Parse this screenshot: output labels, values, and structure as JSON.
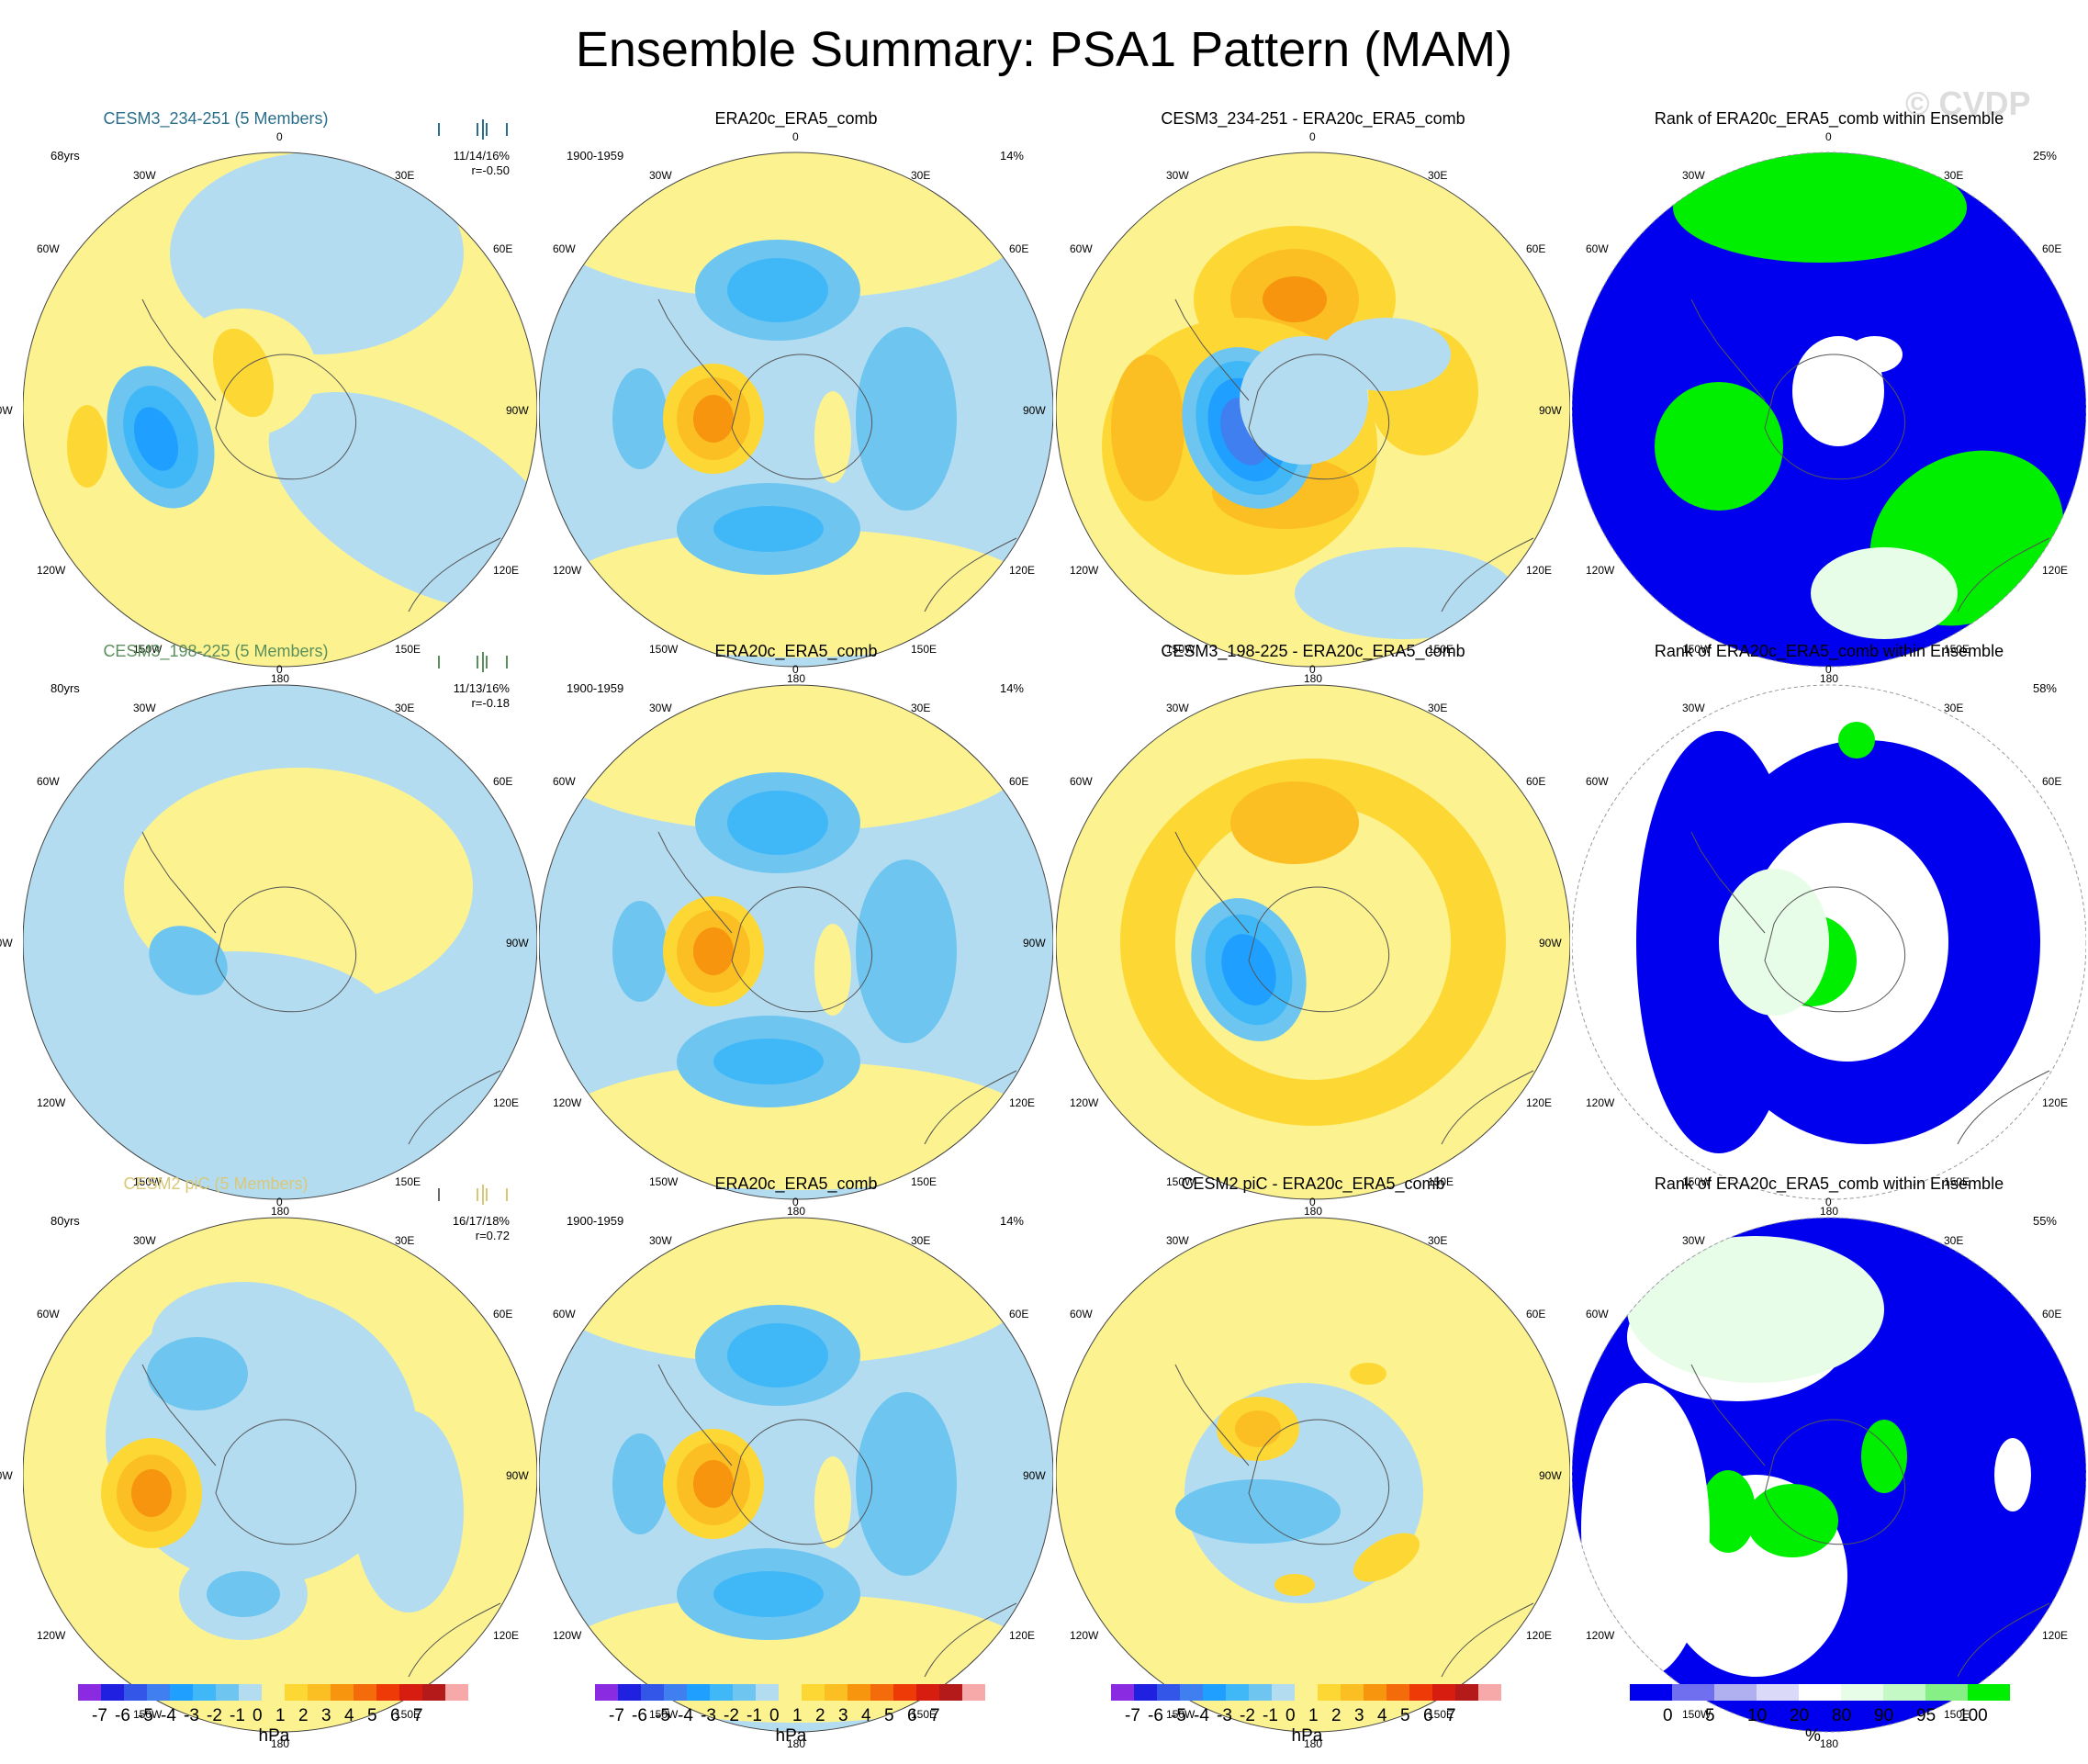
{
  "main_title": "Ensemble Summary: PSA1 Pattern (MAM)",
  "watermark": "© CVDP",
  "lon_labels": {
    "top": "0",
    "tr": "30E",
    "r1": "60E",
    "r": "90E",
    "r2": "120E",
    "br": "150E",
    "bottom": "180",
    "bl": "150W",
    "l2": "120W",
    "l": "90W",
    "l1": "60W",
    "tl": "30W"
  },
  "rows": [
    {
      "model": {
        "title": "CESM3_234-251 (5 Members)",
        "title_color": "#2a6e8c",
        "years": "68yrs",
        "stat1": "11/14/16%",
        "stat2": "r=-0.50",
        "tick_colors": [
          "#2a6e8c",
          "#2a6e8c",
          "#2a6e8c",
          "#2a6e8c",
          "#2a6e8c"
        ]
      },
      "obs": {
        "title": "ERA20c_ERA5_comb",
        "period": "1900-1959",
        "pct": "14%"
      },
      "diff": {
        "title": "CESM3_234-251 - ERA20c_ERA5_comb"
      },
      "rank": {
        "title": "Rank of ERA20c_ERA5_comb within Ensemble",
        "pct": "25%"
      }
    },
    {
      "model": {
        "title": "CESM3_198-225 (5 Members)",
        "title_color": "#5b8f5b",
        "years": "80yrs",
        "stat1": "11/13/16%",
        "stat2": "r=-0.18",
        "tick_colors": [
          "#5b8f5b",
          "#5b8f5b",
          "#5b8f5b",
          "#5b8f5b",
          "#5b8f5b"
        ]
      },
      "obs": {
        "title": "ERA20c_ERA5_comb",
        "period": "1900-1959",
        "pct": "14%"
      },
      "diff": {
        "title": "CESM3_198-225 - ERA20c_ERA5_comb"
      },
      "rank": {
        "title": "Rank of ERA20c_ERA5_comb within Ensemble",
        "pct": "58%"
      }
    },
    {
      "model": {
        "title": "CESM2 piC (5 Members)",
        "title_color": "#d8c878",
        "years": "80yrs",
        "stat1": "16/17/18%",
        "stat2": "r=0.72",
        "tick_colors": [
          "#666666",
          "#d8c878",
          "#d8c878",
          "#d8c878",
          "#d8c878"
        ]
      },
      "obs": {
        "title": "ERA20c_ERA5_comb",
        "period": "1900-1959",
        "pct": "14%"
      },
      "diff": {
        "title": "CESM2 piC - ERA20c_ERA5_comb"
      },
      "rank": {
        "title": "Rank of ERA20c_ERA5_comb within Ensemble",
        "pct": "55%"
      }
    }
  ],
  "colorbars": [
    {
      "labels": [
        "-7",
        "-6",
        "-5",
        "-4",
        "-3",
        "-2",
        "-1",
        "0",
        "1",
        "2",
        "3",
        "4",
        "5",
        "6",
        "7"
      ],
      "unit": "hPa"
    },
    {
      "labels": [
        "-7",
        "-6",
        "-5",
        "-4",
        "-3",
        "-2",
        "-1",
        "0",
        "1",
        "2",
        "3",
        "4",
        "5",
        "6",
        "7"
      ],
      "unit": "hPa"
    },
    {
      "labels": [
        "-7",
        "-6",
        "-5",
        "-4",
        "-3",
        "-2",
        "-1",
        "0",
        "1",
        "2",
        "3",
        "4",
        "5",
        "6",
        "7"
      ],
      "unit": "hPa"
    },
    {
      "labels": [
        "0",
        "5",
        "10",
        "20",
        "80",
        "90",
        "95",
        "100"
      ],
      "unit": "%"
    }
  ],
  "colors": {
    "pressure_scale": [
      "#8a2be2",
      "#2020e0",
      "#3355e8",
      "#3f7fef",
      "#1f9fff",
      "#40b8f8",
      "#6ec6f0",
      "#b4dcf0",
      "#fcf390",
      "#fdd835",
      "#fbbf24",
      "#f7950e",
      "#f36b0a",
      "#ee3a06",
      "#d61d10",
      "#b51a1a",
      "#f7a8a8"
    ],
    "rank_scale": [
      "#0000ee",
      "#6f6ff0",
      "#b0b0f0",
      "#dadaf8",
      "#ffffff",
      "#e8fde8",
      "#c4f8c4",
      "#86f086",
      "#00ee00"
    ]
  }
}
